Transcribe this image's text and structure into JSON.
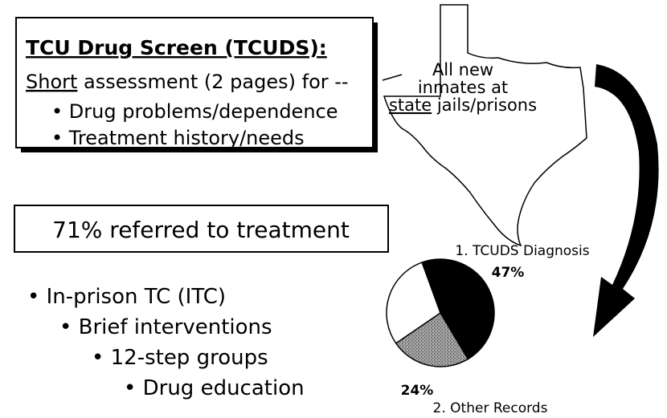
{
  "box": {
    "title": "TCU Drug Screen (TCUDS):",
    "line_start": "Short",
    "line_rest": " assessment (2 pages) for --",
    "bullets": [
      "Drug problems/dependence",
      "Treatment history/needs"
    ]
  },
  "map_label": {
    "lines": [
      "All new",
      "inmates at"
    ],
    "underlined": "state",
    "rest": " jails/prisons"
  },
  "referral": {
    "headline": "71% referred to treatment",
    "items": [
      "In-prison TC (ITC)",
      "Brief interventions",
      "12-step groups",
      "Drug education"
    ]
  },
  "chart_data": {
    "type": "pie",
    "categories": [
      "1. TCUDS Diagnosis",
      "2. Other Records",
      null
    ],
    "values": [
      47,
      24,
      29
    ],
    "value_labels": [
      "47%",
      "24%",
      null
    ],
    "colors": [
      "#000000",
      "#8a8a8a",
      "#ffffff"
    ]
  }
}
